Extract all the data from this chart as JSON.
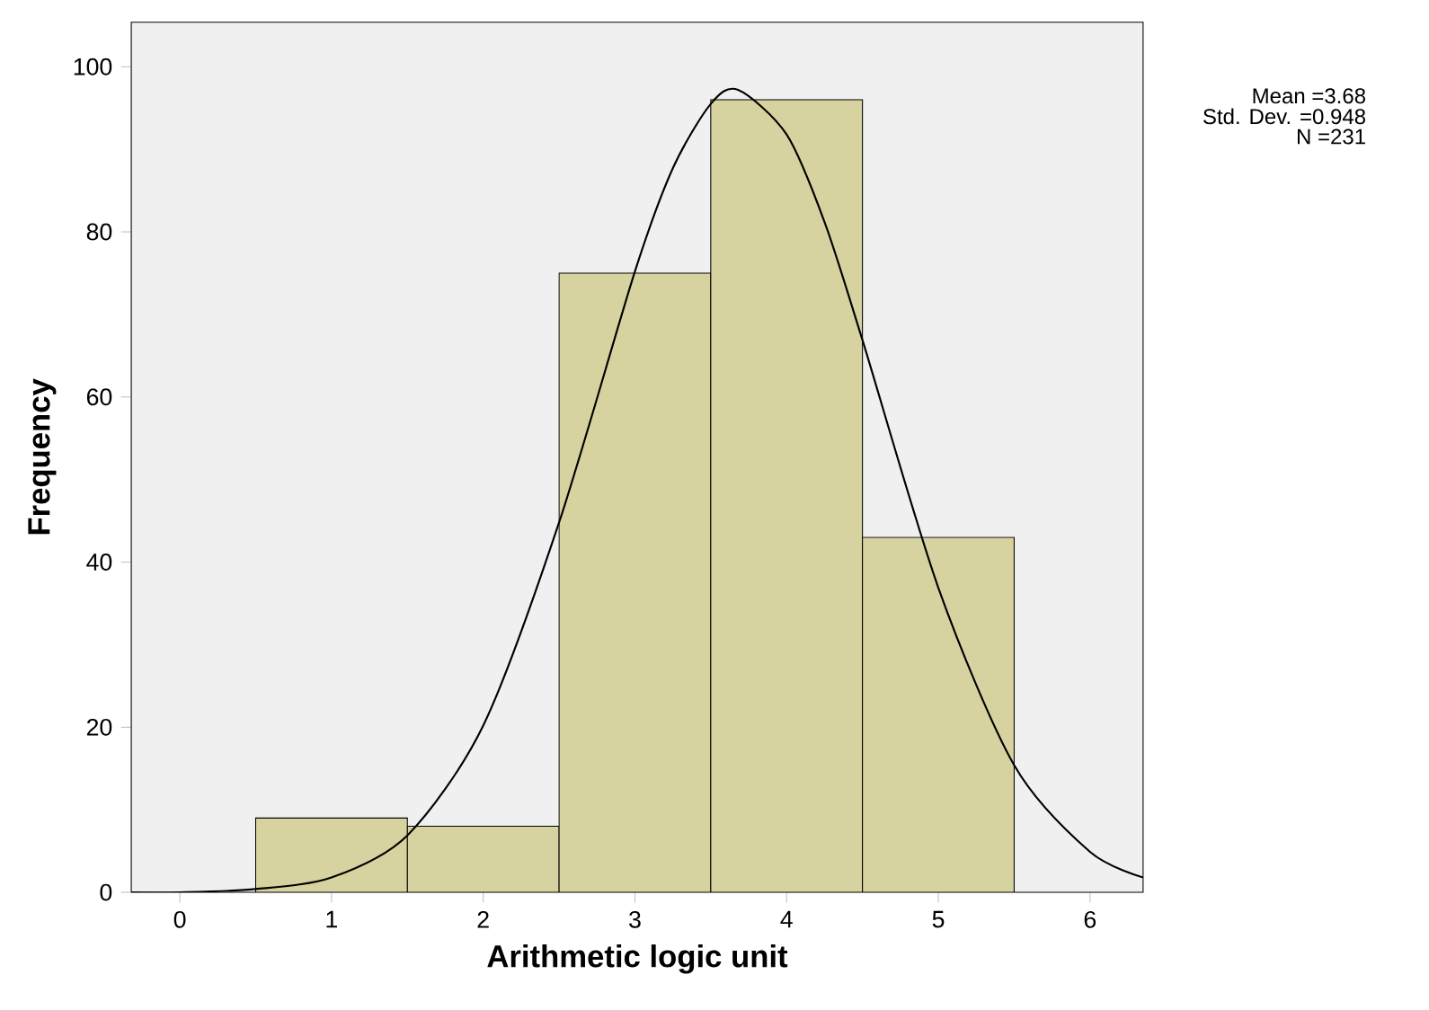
{
  "chart_data": {
    "type": "histogram",
    "xlabel": "Arithmetic logic unit",
    "ylabel": "Frequency",
    "annotations": [
      "Mean =3.68",
      "Std. Dev. =0.948",
      "N =231"
    ],
    "series": [
      {
        "color": "#d6d3a0",
        "bins": [
          0.5,
          1.5,
          2.5,
          3.5,
          4.5,
          5.5
        ],
        "values": [
          9,
          8,
          75,
          96,
          43
        ]
      },
      {
        "type": "line",
        "color": "#000000",
        "x": [
          -0.32,
          0,
          0.5,
          1,
          1.5,
          2,
          2.5,
          3,
          3.25,
          3.5,
          3.68,
          4,
          4.25,
          4.5,
          5,
          5.5,
          6,
          6.35
        ],
        "values": [
          0,
          0,
          0.4,
          1.8,
          6.9,
          20.2,
          44.8,
          75.2,
          87.7,
          95.5,
          97.2,
          91.8,
          81.2,
          66.9,
          36.9,
          15.4,
          4.9,
          1.8
        ]
      }
    ],
    "xlim": [
      -0.32,
      6.35
    ],
    "ylim": [
      0,
      105.4
    ],
    "xticks": [
      0,
      1,
      2,
      3,
      4,
      5,
      6
    ],
    "yticks": [
      0,
      20,
      40,
      60,
      80,
      100
    ],
    "marker": "none",
    "line_style": "solid"
  }
}
